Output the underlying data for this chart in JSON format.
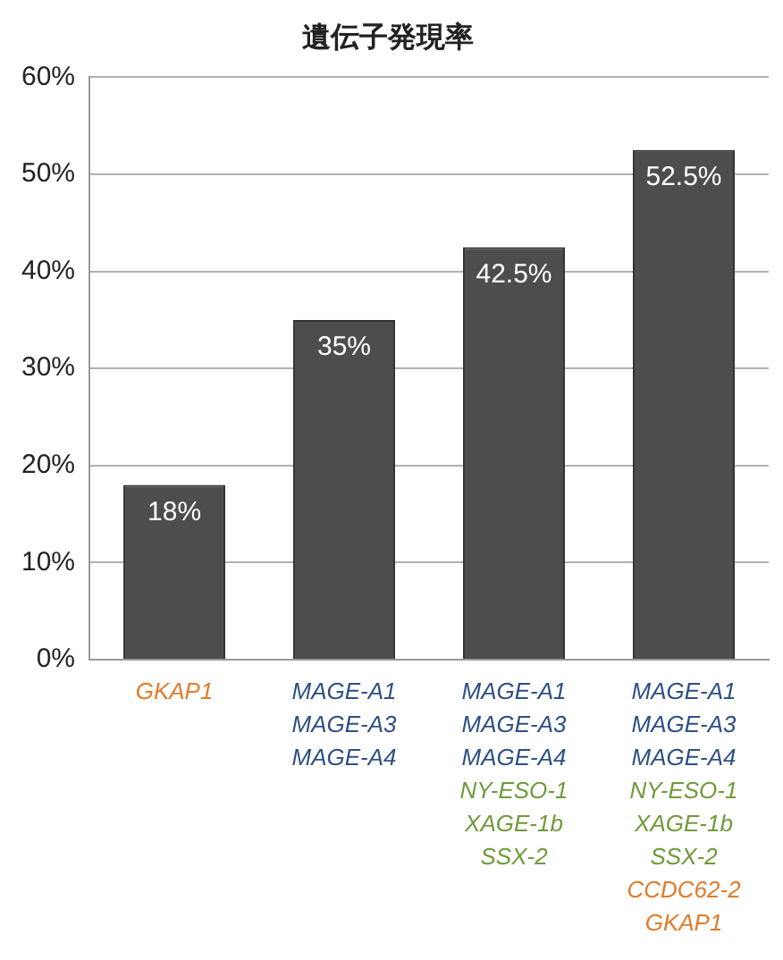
{
  "chart_data": {
    "type": "bar",
    "title": "遺伝子発現率",
    "categories": [
      "GKAP1",
      "MAGE-A1\nMAGE-A3\nMAGE-A4",
      "MAGE-A1\nMAGE-A3\nMAGE-A4\nNY-ESO-1\nXAGE-1b\nSSX-2",
      "MAGE-A1\nMAGE-A3\nMAGE-A4\nNY-ESO-1\nXAGE-1b\nSSX-2\nCCDC62-2\nGKAP1"
    ],
    "values": [
      18,
      35,
      42.5,
      52.5
    ],
    "value_labels": [
      "18%",
      "35%",
      "42.5%",
      "52.5%"
    ],
    "color": "#4d4d4d",
    "ylim": [
      0,
      60
    ],
    "yticks": [
      {
        "value": 0,
        "label": "0%"
      },
      {
        "value": 10,
        "label": "10%"
      },
      {
        "value": 20,
        "label": "20%"
      },
      {
        "value": 30,
        "label": "30%"
      },
      {
        "value": 40,
        "label": "40%"
      },
      {
        "value": 50,
        "label": "50%"
      },
      {
        "value": 60,
        "label": "60%"
      }
    ],
    "grid": "y"
  }
}
